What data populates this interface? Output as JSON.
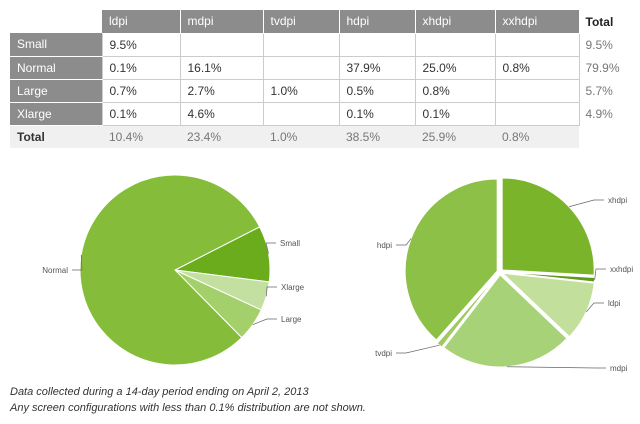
{
  "table": {
    "columns": [
      "ldpi",
      "mdpi",
      "tvdpi",
      "hdpi",
      "xhdpi",
      "xxhdpi"
    ],
    "total_header": "Total",
    "rows": [
      {
        "label": "Small",
        "cells": [
          "9.5%",
          "",
          "",
          "",
          "",
          ""
        ],
        "total": "9.5%"
      },
      {
        "label": "Normal",
        "cells": [
          "0.1%",
          "16.1%",
          "",
          "37.9%",
          "25.0%",
          "0.8%"
        ],
        "total": "79.9%"
      },
      {
        "label": "Large",
        "cells": [
          "0.7%",
          "2.7%",
          "1.0%",
          "0.5%",
          "0.8%",
          ""
        ],
        "total": "5.7%"
      },
      {
        "label": "Xlarge",
        "cells": [
          "0.1%",
          "4.6%",
          "",
          "0.1%",
          "0.1%",
          ""
        ],
        "total": "4.9%"
      }
    ],
    "total_row": {
      "label": "Total",
      "cells": [
        "10.4%",
        "23.4%",
        "1.0%",
        "38.5%",
        "25.9%",
        "0.8%"
      ]
    }
  },
  "chart_data": [
    {
      "type": "pie",
      "title": "",
      "labels": [
        "Small",
        "Normal",
        "Large",
        "Xlarge"
      ],
      "values": [
        9.5,
        79.9,
        5.7,
        4.9
      ],
      "colors": [
        "#6aac1c",
        "#85bd3a",
        "#a4d06b",
        "#c4e0a0"
      ]
    },
    {
      "type": "pie",
      "title": "",
      "labels": [
        "ldpi",
        "mdpi",
        "tvdpi",
        "hdpi",
        "xhdpi",
        "xxhdpi"
      ],
      "values": [
        10.4,
        23.4,
        1.0,
        38.5,
        25.9,
        0.8
      ],
      "colors": [
        "#c2df9b",
        "#a8d277",
        "#9fca63",
        "#8dc046",
        "#7ab42a",
        "#5f9a18"
      ]
    }
  ],
  "footnotes": {
    "line1": "Data collected during a 14-day period ending on April 2, 2013",
    "line2": "Any screen configurations with less than 0.1% distribution are not shown."
  }
}
